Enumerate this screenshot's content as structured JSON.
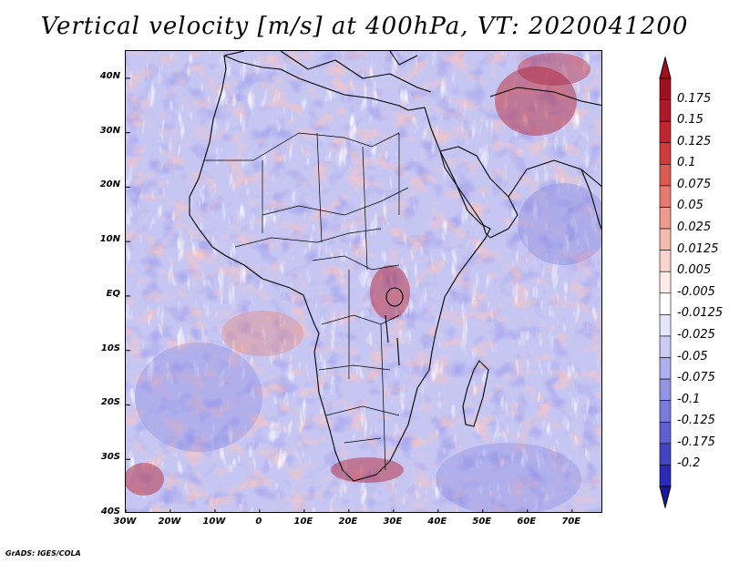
{
  "title": "Vertical velocity [m/s] at 400hPa, VT: 2020041200",
  "credit": "GrADS: IGES/COLA",
  "map": {
    "region": "Africa",
    "lat_range": [
      -40,
      45
    ],
    "lon_range": [
      -30,
      77
    ],
    "lat_ticks": [
      {
        "value": 40,
        "label": "40N"
      },
      {
        "value": 30,
        "label": "30N"
      },
      {
        "value": 20,
        "label": "20N"
      },
      {
        "value": 10,
        "label": "10N"
      },
      {
        "value": 0,
        "label": "EQ"
      },
      {
        "value": -10,
        "label": "10S"
      },
      {
        "value": -20,
        "label": "20S"
      },
      {
        "value": -30,
        "label": "30S"
      },
      {
        "value": -40,
        "label": "40S"
      }
    ],
    "lon_ticks": [
      {
        "value": -30,
        "label": "30W"
      },
      {
        "value": -20,
        "label": "20W"
      },
      {
        "value": -10,
        "label": "10W"
      },
      {
        "value": 0,
        "label": "0"
      },
      {
        "value": 10,
        "label": "10E"
      },
      {
        "value": 20,
        "label": "20E"
      },
      {
        "value": 30,
        "label": "30E"
      },
      {
        "value": 40,
        "label": "40E"
      },
      {
        "value": 50,
        "label": "50E"
      },
      {
        "value": 60,
        "label": "60E"
      },
      {
        "value": 70,
        "label": "70E"
      }
    ]
  },
  "colorbar": {
    "levels": [
      {
        "label": "0.175",
        "color": "#b2182b"
      },
      {
        "label": "0.15",
        "color": "#c0262f"
      },
      {
        "label": "0.125",
        "color": "#cf3a3a"
      },
      {
        "label": "0.1",
        "color": "#dc5a52"
      },
      {
        "label": "0.075",
        "color": "#e57a6d"
      },
      {
        "label": "0.05",
        "color": "#ee9a8d"
      },
      {
        "label": "0.025",
        "color": "#f5baae"
      },
      {
        "label": "0.0125",
        "color": "#f9d4cc"
      },
      {
        "label": "0.005",
        "color": "#fcebe7"
      },
      {
        "label": "-0.005",
        "color": "#ffffff"
      },
      {
        "label": "-0.0125",
        "color": "#e4e4fa"
      },
      {
        "label": "-0.025",
        "color": "#cacaf4"
      },
      {
        "label": "-0.05",
        "color": "#afafee"
      },
      {
        "label": "-0.075",
        "color": "#9494e6"
      },
      {
        "label": "-0.1",
        "color": "#7a7add"
      },
      {
        "label": "-0.125",
        "color": "#5f5fd3"
      },
      {
        "label": "-0.175",
        "color": "#4343c6"
      },
      {
        "label": "-0.2",
        "color": "#2a2ab6"
      }
    ],
    "top_color": "#a01020",
    "bottom_color": "#1a1a9a"
  }
}
